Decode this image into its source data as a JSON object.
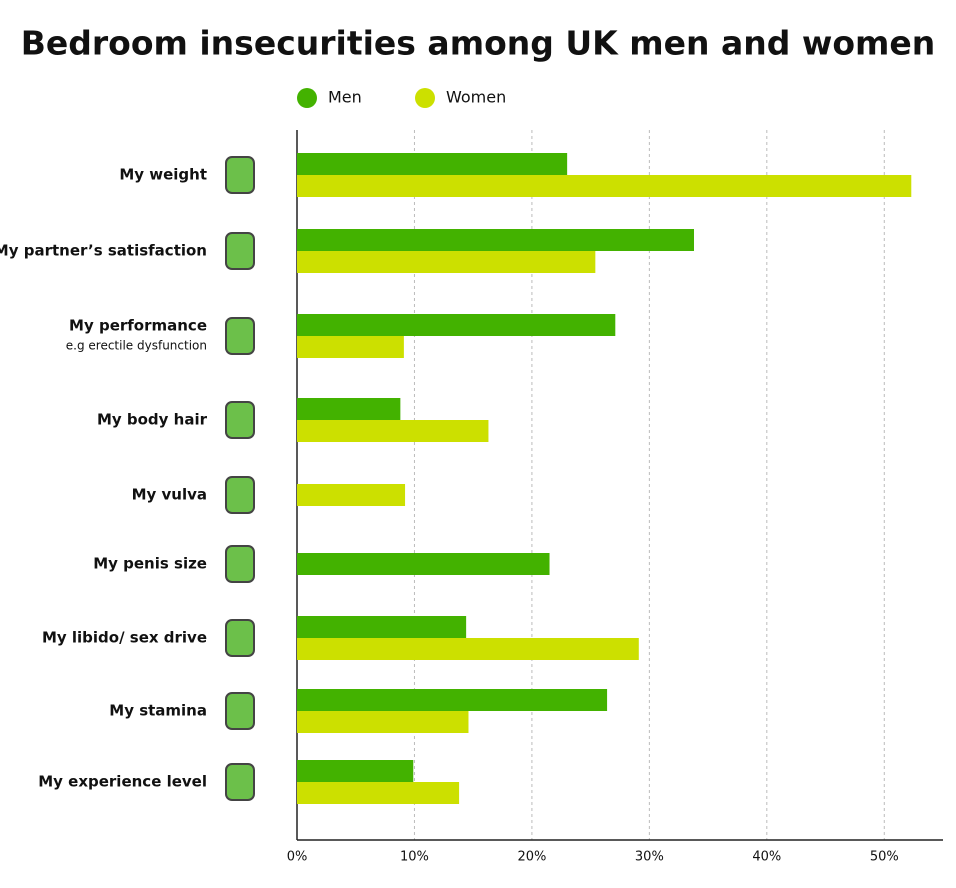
{
  "chart_data": {
    "type": "bar",
    "orientation": "horizontal",
    "title": "Bedroom insecurities among UK men and women",
    "categories": [
      "My weight",
      "My partner’s satisfaction",
      "My performance",
      "My body hair",
      "My vulva",
      "My penis size",
      "My libido/ sex drive",
      "My stamina",
      "My experience level"
    ],
    "category_notes": [
      null,
      null,
      "e.g erectile dysfunction",
      null,
      null,
      null,
      null,
      null,
      null
    ],
    "series": [
      {
        "name": "Men",
        "color": "#43b200",
        "values": [
          23.0,
          33.8,
          27.1,
          8.8,
          null,
          21.5,
          14.4,
          26.4,
          9.9
        ]
      },
      {
        "name": "Women",
        "color": "#cce000",
        "values": [
          52.3,
          25.4,
          9.1,
          16.3,
          9.2,
          null,
          29.1,
          14.6,
          13.8
        ]
      }
    ],
    "xlim": [
      0,
      55
    ],
    "xticks": [
      {
        "value": 0,
        "label": "0%"
      },
      {
        "value": 10,
        "label": "10%"
      },
      {
        "value": 20,
        "label": "20%"
      },
      {
        "value": 30,
        "label": "30%"
      },
      {
        "value": 40,
        "label": "40%"
      },
      {
        "value": 50,
        "label": "50%"
      }
    ],
    "grid": true,
    "legend": "top"
  }
}
